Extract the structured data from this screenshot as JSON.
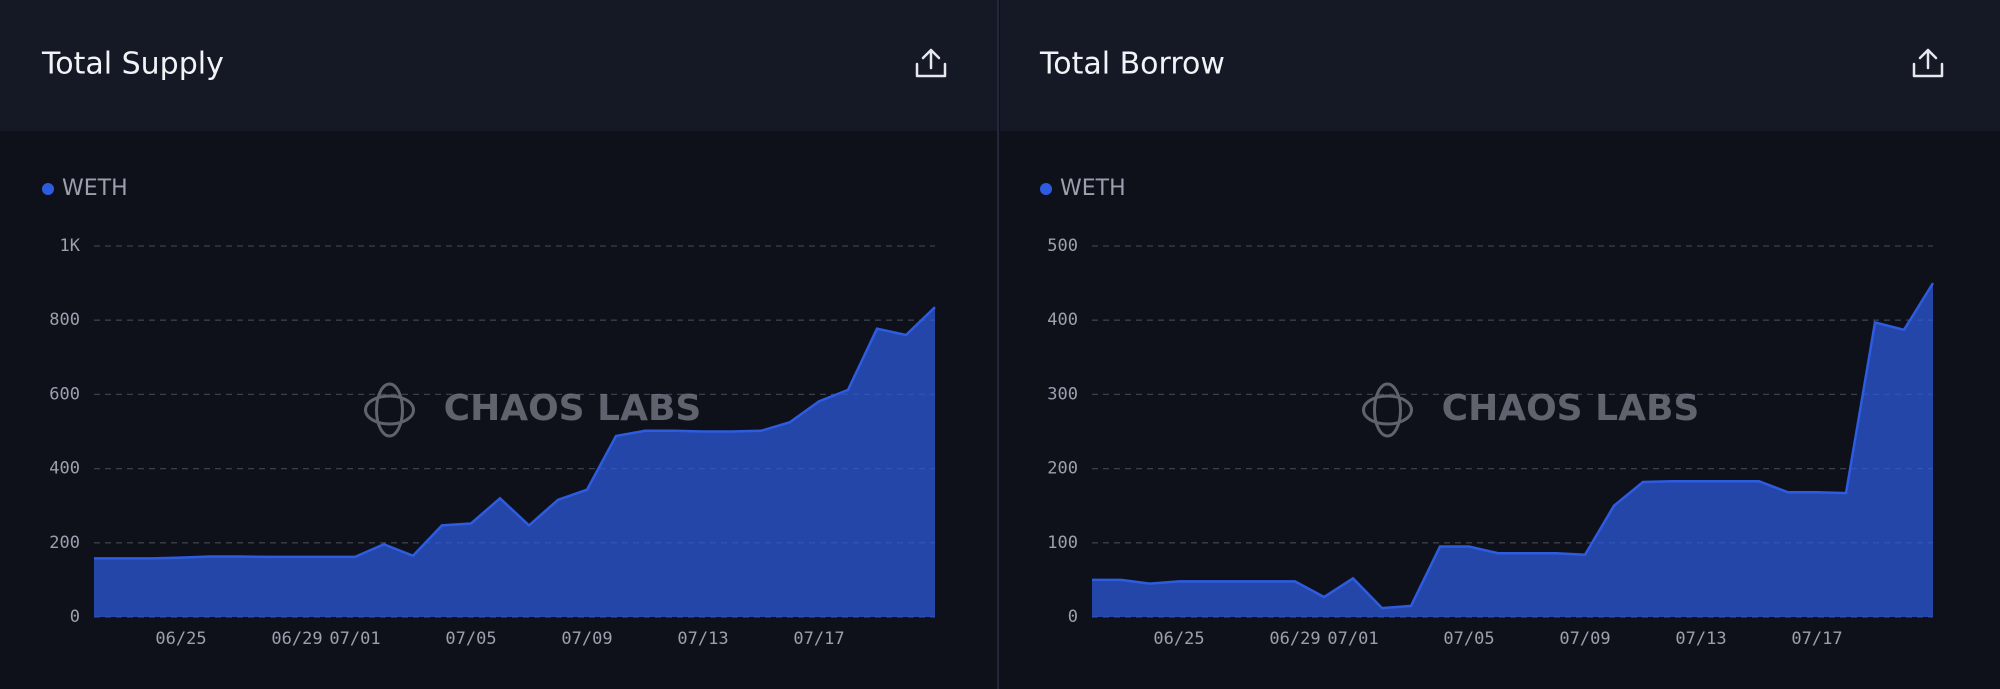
{
  "chart_data": [
    {
      "type": "area",
      "title": "Total Supply",
      "watermark": "CHAOS LABS",
      "categories": [
        null,
        null,
        null,
        "06/25",
        null,
        null,
        null,
        "06/29",
        null,
        "07/01",
        null,
        null,
        null,
        "07/05",
        null,
        null,
        null,
        "07/09",
        null,
        null,
        null,
        "07/13",
        null,
        null,
        null,
        "07/17",
        null,
        null,
        null,
        null
      ],
      "series": [
        {
          "name": "WETH",
          "color": "#2d5ce0",
          "values": [
            158,
            158,
            158,
            160,
            163,
            163,
            162,
            162,
            162,
            162,
            196,
            165,
            247,
            252,
            320,
            247,
            316,
            343,
            488,
            502,
            502,
            500,
            500,
            502,
            525,
            581,
            612,
            777,
            760,
            835
          ]
        }
      ],
      "ylim": [
        0,
        1000
      ],
      "yticks": [
        0,
        200,
        400,
        600,
        800,
        {
          "value": 1000,
          "label": "1K"
        }
      ],
      "grid": true
    },
    {
      "type": "area",
      "title": "Total Borrow",
      "watermark": "CHAOS LABS",
      "categories": [
        null,
        null,
        null,
        "06/25",
        null,
        null,
        null,
        "06/29",
        null,
        "07/01",
        null,
        null,
        null,
        "07/05",
        null,
        null,
        null,
        "07/09",
        null,
        null,
        null,
        "07/13",
        null,
        null,
        null,
        "07/17",
        null,
        null,
        null,
        null
      ],
      "series": [
        {
          "name": "WETH",
          "color": "#2d5ce0",
          "values": [
            50,
            50,
            45,
            48,
            48,
            48,
            48,
            48,
            27,
            52,
            12,
            15,
            95,
            95,
            86,
            86,
            86,
            84,
            150,
            182,
            183,
            183,
            183,
            183,
            168,
            168,
            167,
            397,
            387,
            450
          ]
        }
      ],
      "ylim": [
        0,
        500
      ],
      "yticks": [
        0,
        100,
        200,
        300,
        400,
        500
      ],
      "grid": true
    }
  ]
}
